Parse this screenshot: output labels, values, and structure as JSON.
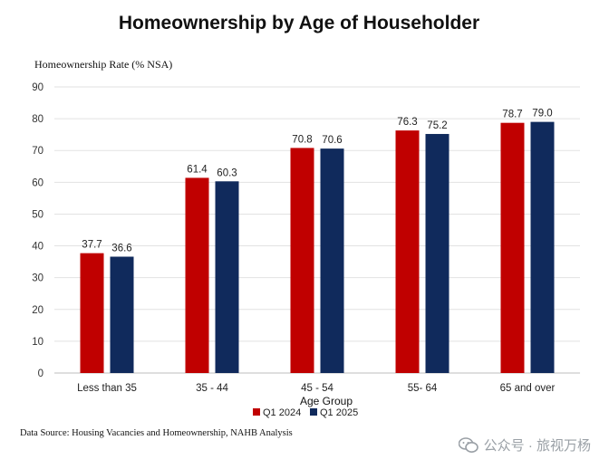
{
  "chart_data": {
    "type": "bar",
    "title": "Homeownership by Age of Householder",
    "ylabel": "Homeownership Rate (% NSA)",
    "xlabel": "Age Group",
    "ylim": [
      0,
      90
    ],
    "yticks": [
      0,
      10,
      20,
      30,
      40,
      50,
      60,
      70,
      80,
      90
    ],
    "grid": true,
    "legend_position": "bottom",
    "categories": [
      "Less than 35",
      "35 - 44",
      "45 - 54",
      "55- 64",
      "65 and over"
    ],
    "series": [
      {
        "name": "Q1 2024",
        "color": "#c00000",
        "values": [
          37.7,
          61.4,
          70.8,
          76.3,
          78.7
        ],
        "labels": [
          "37.7",
          "61.4",
          "70.8",
          "76.3",
          "78.7"
        ]
      },
      {
        "name": "Q1 2025",
        "color": "#102a5c",
        "values": [
          36.6,
          60.3,
          70.6,
          75.2,
          79.0
        ],
        "labels": [
          "36.6",
          "60.3",
          "70.6",
          "75.2",
          "79.0"
        ]
      }
    ]
  },
  "source": "Data Source: Housing Vacancies and Homeownership, NAHB Analysis",
  "watermark": "公众号 · 旅视万杨"
}
